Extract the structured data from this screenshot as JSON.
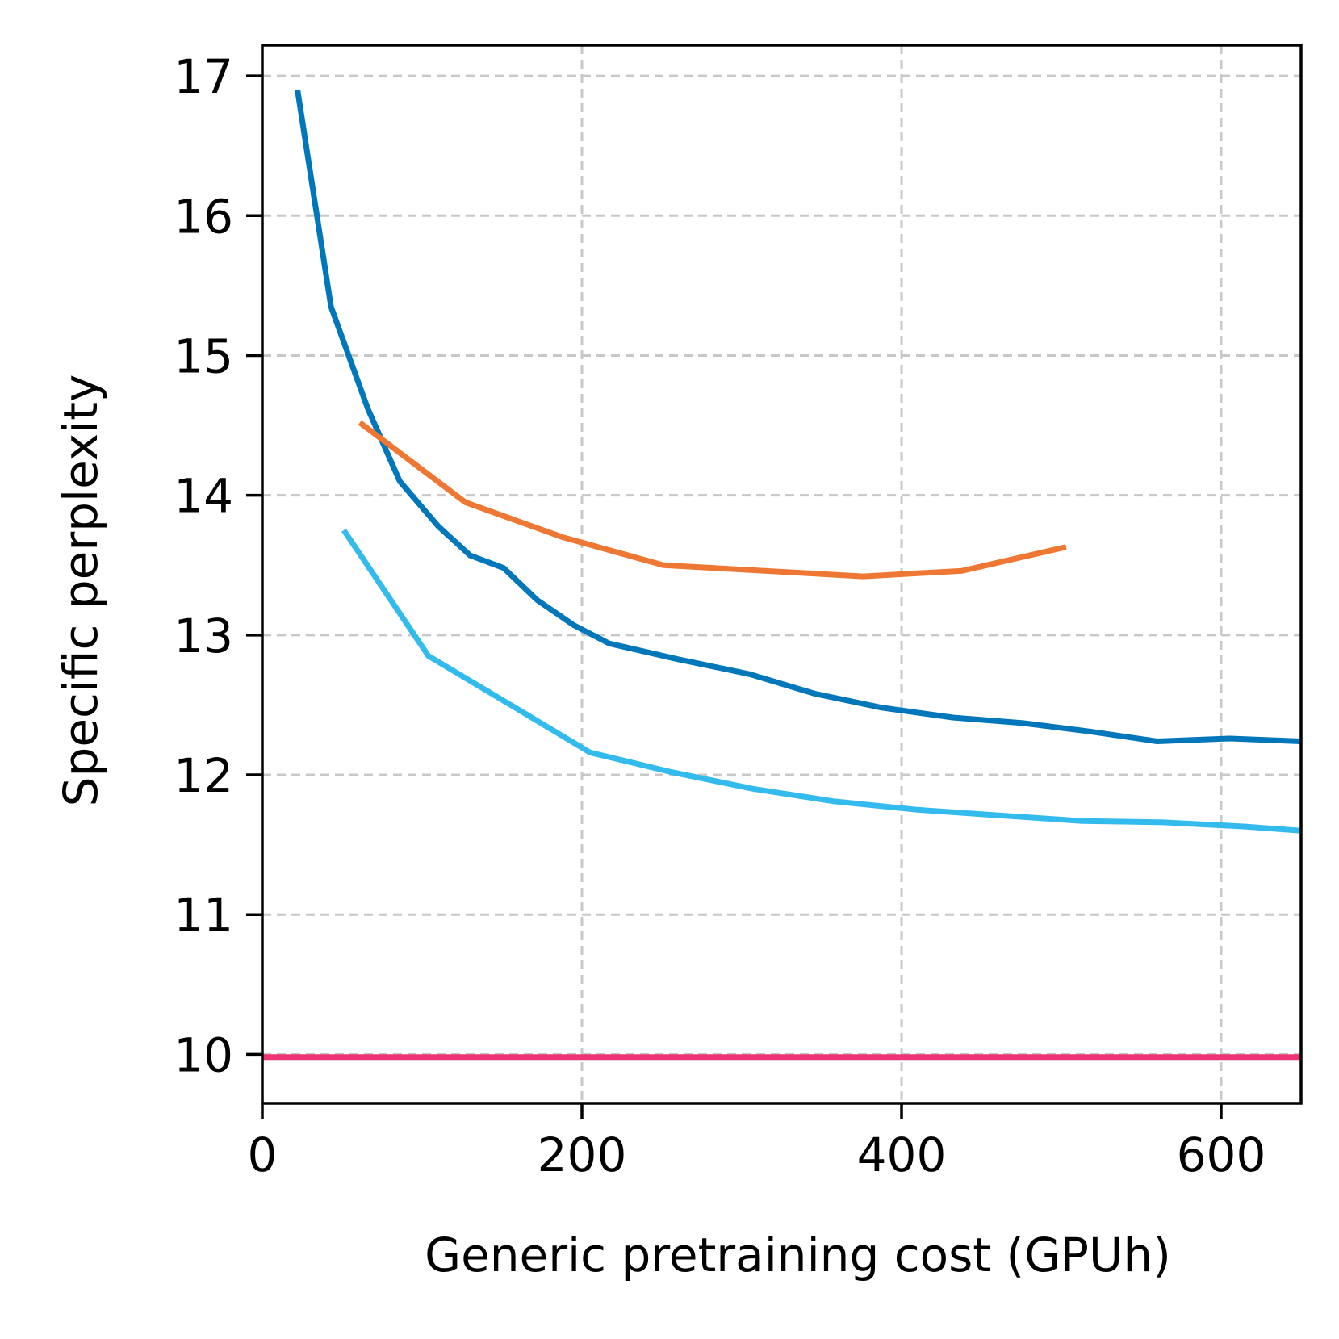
{
  "chart_data": {
    "type": "line",
    "title": "",
    "xlabel": "Generic pretraining cost (GPUh)",
    "ylabel": "Specific perplexity",
    "xlim": [
      0,
      650
    ],
    "ylim": [
      9.65,
      17.22
    ],
    "xticks": [
      0,
      200,
      400,
      600
    ],
    "yticks": [
      10,
      11,
      12,
      13,
      14,
      15,
      16,
      17
    ],
    "grid": true,
    "grid_style": "dashed",
    "legend": false,
    "series": [
      {
        "color": "#0077bb",
        "x": [
          22,
          43,
          66,
          86,
          110,
          130,
          151,
          172,
          195,
          217,
          259,
          305,
          346,
          388,
          432,
          476,
          518,
          560,
          605,
          650
        ],
        "y": [
          16.9,
          15.35,
          14.62,
          14.1,
          13.78,
          13.57,
          13.48,
          13.25,
          13.07,
          12.94,
          12.83,
          12.72,
          12.58,
          12.48,
          12.41,
          12.37,
          12.31,
          12.24,
          12.26,
          12.24
        ]
      },
      {
        "color": "#ee7733",
        "x": [
          61,
          127,
          188,
          251,
          376,
          438,
          503
        ],
        "y": [
          14.52,
          13.95,
          13.7,
          13.5,
          13.42,
          13.46,
          13.63
        ]
      },
      {
        "color": "#33bbee",
        "x": [
          51,
          104,
          154,
          205,
          256,
          307,
          358,
          410,
          461,
          513,
          564,
          615,
          650
        ],
        "y": [
          13.75,
          12.85,
          12.51,
          12.16,
          12.02,
          11.9,
          11.81,
          11.75,
          11.71,
          11.67,
          11.66,
          11.63,
          11.6
        ]
      },
      {
        "color": "#ee3377",
        "x": [
          0,
          650
        ],
        "y": [
          9.98,
          9.98
        ]
      }
    ]
  }
}
